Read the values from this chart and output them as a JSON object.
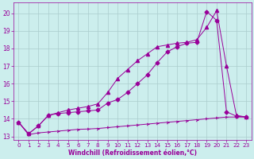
{
  "xlabel": "Windchill (Refroidissement éolien,°C)",
  "background_color": "#cceeed",
  "grid_color": "#aacccc",
  "line_color": "#990099",
  "xlim": [
    -0.5,
    23.5
  ],
  "ylim": [
    12.8,
    20.6
  ],
  "xticks": [
    0,
    1,
    2,
    3,
    4,
    5,
    6,
    7,
    8,
    9,
    10,
    11,
    12,
    13,
    14,
    15,
    16,
    17,
    18,
    19,
    20,
    21,
    22,
    23
  ],
  "yticks": [
    13,
    14,
    15,
    16,
    17,
    18,
    19,
    20
  ],
  "series1_x": [
    0,
    1,
    2,
    3,
    4,
    5,
    6,
    7,
    8,
    9,
    10,
    11,
    12,
    13,
    14,
    15,
    16,
    17,
    18,
    19,
    20,
    21,
    22,
    23
  ],
  "series1_y": [
    13.8,
    13.1,
    13.2,
    13.25,
    13.3,
    13.35,
    13.4,
    13.42,
    13.45,
    13.5,
    13.55,
    13.6,
    13.65,
    13.7,
    13.75,
    13.8,
    13.85,
    13.9,
    13.95,
    14.0,
    14.05,
    14.1,
    14.1,
    14.1
  ],
  "series2_x": [
    0,
    1,
    2,
    3,
    4,
    5,
    6,
    7,
    8,
    9,
    10,
    11,
    12,
    13,
    14,
    15,
    16,
    17,
    18,
    19,
    20,
    21,
    22,
    23
  ],
  "series2_y": [
    13.8,
    13.15,
    13.6,
    14.2,
    14.3,
    14.35,
    14.4,
    14.45,
    14.5,
    14.9,
    15.1,
    15.5,
    16.0,
    16.5,
    17.2,
    17.8,
    18.1,
    18.3,
    18.35,
    20.1,
    19.6,
    14.4,
    14.15,
    14.1
  ],
  "series3_x": [
    0,
    1,
    2,
    3,
    4,
    5,
    6,
    7,
    8,
    9,
    10,
    11,
    12,
    13,
    14,
    15,
    16,
    17,
    18,
    19,
    20,
    21,
    22,
    23
  ],
  "series3_y": [
    13.8,
    13.15,
    13.6,
    14.2,
    14.35,
    14.5,
    14.6,
    14.7,
    14.85,
    15.5,
    16.3,
    16.8,
    17.3,
    17.7,
    18.1,
    18.2,
    18.3,
    18.35,
    18.5,
    19.2,
    20.15,
    17.0,
    14.2,
    14.1
  ]
}
